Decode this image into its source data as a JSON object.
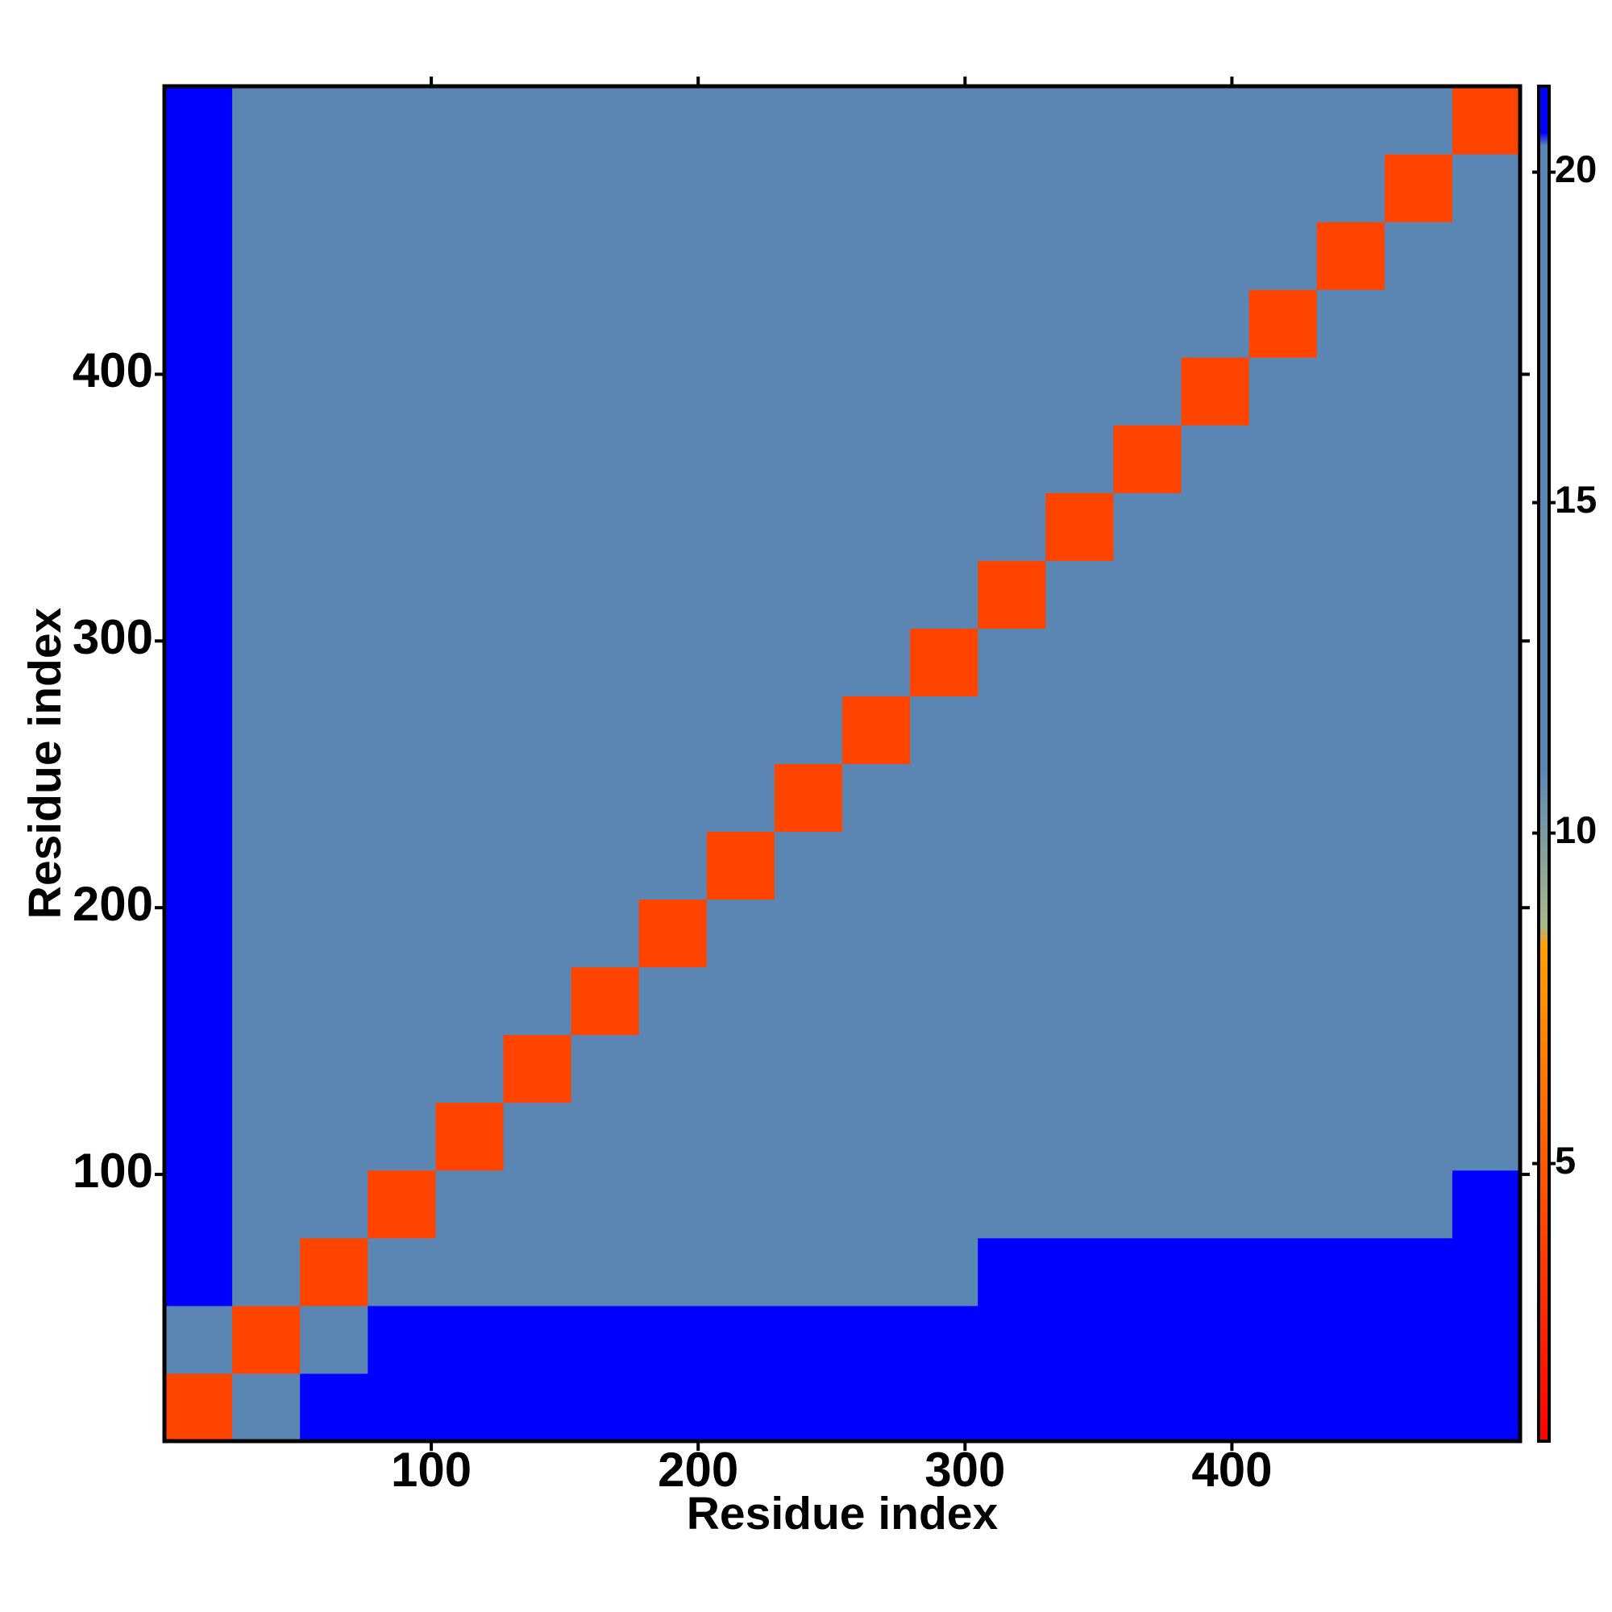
{
  "chart_data": {
    "type": "heatmap",
    "x_label": "Residue index",
    "y_label": "Residue index",
    "xlim": [
      0,
      508
    ],
    "ylim": [
      0,
      508
    ],
    "xticks": [
      100,
      200,
      300,
      400
    ],
    "yticks": [
      100,
      200,
      300,
      400
    ],
    "x_edges": [
      0,
      25.4,
      50.8,
      76.2,
      101.6,
      127,
      152.4,
      177.8,
      203.2,
      228.6,
      254,
      279.4,
      304.8,
      330.2,
      355.6,
      381,
      406.4,
      431.8,
      457.2,
      482.6,
      508
    ],
    "y_edges": [
      0,
      25.4,
      50.8,
      76.2,
      101.6,
      127,
      152.4,
      177.8,
      203.2,
      228.6,
      254,
      279.4,
      304.8,
      330.2,
      355.6,
      381,
      406.4,
      431.8,
      457.2,
      482.6,
      508
    ],
    "z": [
      [
        4,
        20,
        21,
        21,
        21,
        21,
        21,
        21,
        21,
        21,
        21,
        21,
        21,
        21,
        21,
        21,
        21,
        21,
        21,
        21
      ],
      [
        20,
        4,
        20,
        21,
        21,
        21,
        21,
        21,
        21,
        21,
        21,
        21,
        21,
        21,
        21,
        21,
        21,
        21,
        21,
        21
      ],
      [
        21,
        12,
        4,
        12,
        17,
        18,
        18,
        19,
        19,
        19,
        19,
        20,
        21,
        21,
        21,
        21,
        21,
        21,
        21,
        21
      ],
      [
        21,
        20,
        13,
        4,
        12,
        15,
        16,
        17,
        17,
        16,
        18,
        19,
        19,
        19,
        20,
        19,
        19,
        19,
        19,
        21
      ],
      [
        21,
        20,
        15,
        12,
        4,
        11,
        14,
        16,
        16,
        17,
        18,
        18,
        18,
        19,
        18,
        19,
        19,
        19,
        20,
        20
      ],
      [
        21,
        20,
        16,
        14,
        11,
        4,
        11,
        14,
        16,
        17,
        18,
        18,
        19,
        18,
        19,
        19,
        19,
        18,
        19,
        20
      ],
      [
        21,
        20,
        16,
        15,
        14,
        11,
        4,
        11,
        15,
        16,
        17,
        18,
        18,
        19,
        19,
        19,
        19,
        19,
        19,
        20
      ],
      [
        21,
        20,
        17,
        15,
        16,
        14,
        11,
        4,
        11,
        16,
        17,
        17,
        18,
        18,
        19,
        19,
        19,
        19,
        19,
        20
      ],
      [
        21,
        20,
        17,
        16,
        16,
        15,
        15,
        11,
        4,
        11,
        15,
        17,
        18,
        18,
        18,
        19,
        19,
        19,
        19,
        19
      ],
      [
        21,
        20,
        17,
        16,
        16,
        16,
        16,
        14,
        11,
        4,
        11,
        16,
        17,
        17,
        16,
        16,
        17,
        17,
        17,
        17
      ],
      [
        21,
        20,
        17,
        17,
        17,
        18,
        18,
        16,
        15,
        11,
        4,
        11,
        14,
        15,
        16,
        16,
        16,
        15,
        15,
        16
      ],
      [
        21,
        20,
        17,
        17,
        17,
        17,
        18,
        17,
        16,
        16,
        11,
        4,
        11,
        14,
        15,
        16,
        15,
        16,
        15,
        16
      ],
      [
        21,
        20,
        18,
        18,
        17,
        17,
        17,
        18,
        16,
        16,
        14,
        11,
        4,
        11,
        14,
        16,
        16,
        15,
        15,
        15
      ],
      [
        21,
        20,
        18,
        17,
        18,
        17,
        17,
        17,
        17,
        16,
        15,
        14,
        11,
        4,
        11,
        15,
        16,
        14,
        15,
        15
      ],
      [
        21,
        20,
        18,
        18,
        18,
        18,
        18,
        18,
        17,
        16,
        16,
        15,
        14,
        11,
        4,
        11,
        14,
        15,
        15,
        15
      ],
      [
        21,
        20,
        19,
        18,
        19,
        18,
        18,
        18,
        18,
        16,
        16,
        16,
        16,
        15,
        11,
        4,
        11,
        15,
        15,
        15
      ],
      [
        21,
        20,
        19,
        19,
        19,
        19,
        19,
        18,
        18,
        17,
        16,
        16,
        16,
        16,
        14,
        11,
        4,
        11,
        14,
        15
      ],
      [
        21,
        20,
        19,
        18,
        19,
        18,
        19,
        18,
        18,
        16,
        14,
        15,
        15,
        15,
        15,
        14,
        11,
        4,
        11,
        14
      ],
      [
        21,
        20,
        19,
        19,
        18,
        19,
        18,
        19,
        18,
        17,
        15,
        15,
        15,
        15,
        16,
        15,
        14,
        11,
        4,
        11
      ],
      [
        21,
        20,
        19,
        19,
        19,
        18,
        19,
        18,
        18,
        17,
        16,
        15,
        15,
        15,
        16,
        16,
        15,
        14,
        11,
        4
      ]
    ],
    "colorbar_lim": [
      0.8,
      21.3
    ],
    "colorbar_ticks": [
      5,
      10,
      15,
      20
    ],
    "colorscale": [
      [
        0.8,
        "#ff0000"
      ],
      [
        8.3,
        "#ffa000"
      ],
      [
        8.6,
        "#a8b888"
      ],
      [
        11,
        "#5b86b4"
      ],
      [
        20.4,
        "#5b86b4"
      ],
      [
        20.6,
        "#0000ff"
      ],
      [
        21.3,
        "#0000ff"
      ]
    ]
  }
}
